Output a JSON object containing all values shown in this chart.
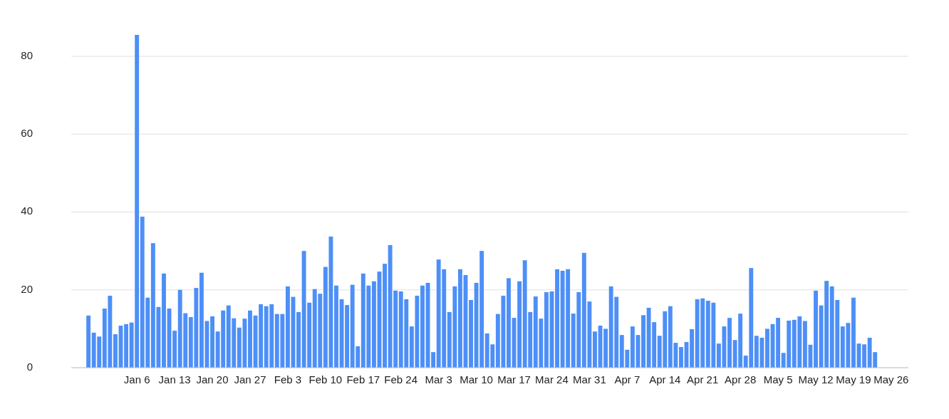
{
  "chart_data": {
    "type": "bar",
    "categories": [
      null,
      null,
      null,
      null,
      null,
      null,
      null,
      null,
      null,
      "Jan 6",
      null,
      null,
      null,
      null,
      null,
      null,
      "Jan 13",
      null,
      null,
      null,
      null,
      null,
      null,
      "Jan 20",
      null,
      null,
      null,
      null,
      null,
      null,
      "Jan 27",
      null,
      null,
      null,
      null,
      null,
      null,
      "Feb 3",
      null,
      null,
      null,
      null,
      null,
      null,
      "Feb 10",
      null,
      null,
      null,
      null,
      null,
      null,
      "Feb 17",
      null,
      null,
      null,
      null,
      null,
      null,
      "Feb 24",
      null,
      null,
      null,
      null,
      null,
      null,
      "Mar 3",
      null,
      null,
      null,
      null,
      null,
      null,
      "Mar 10",
      null,
      null,
      null,
      null,
      null,
      null,
      "Mar 17",
      null,
      null,
      null,
      null,
      null,
      null,
      "Mar 24",
      null,
      null,
      null,
      null,
      null,
      null,
      "Mar 31",
      null,
      null,
      null,
      null,
      null,
      null,
      "Apr 7",
      null,
      null,
      null,
      null,
      null,
      null,
      "Apr 14",
      null,
      null,
      null,
      null,
      null,
      null,
      "Apr 21",
      null,
      null,
      null,
      null,
      null,
      null,
      "Apr 28",
      null,
      null,
      null,
      null,
      null,
      null,
      "May 5",
      null,
      null,
      null,
      null,
      null,
      null,
      "May 12",
      null,
      null,
      null,
      null,
      null,
      null,
      "May 19",
      null,
      null,
      null,
      null,
      null,
      null,
      "May 26"
    ],
    "series": [
      {
        "color": "#4d8ff7",
        "values": [
          13.4,
          9,
          8,
          15.2,
          18.5,
          8.6,
          10.8,
          11.2,
          11.6,
          85.5,
          38.8,
          18,
          32,
          15.6,
          24.2,
          15.2,
          9.5,
          20,
          14,
          13,
          20.5,
          24.4,
          12,
          13.2,
          9.3,
          14.7,
          16,
          12.7,
          10.3,
          12.6,
          14.7,
          13.4,
          16.3,
          15.8,
          16.3,
          13.8,
          13.8,
          20.9,
          18.2,
          14.3,
          30,
          16.7,
          20.2,
          19,
          25.9,
          33.7,
          21.1,
          17.6,
          16.1,
          21.3,
          5.5,
          24.2,
          21.1,
          22.2,
          24.7,
          26.7,
          31.5,
          19.8,
          19.6,
          17.6,
          10.6,
          18.5,
          21.1,
          21.8,
          4,
          27.8,
          25.3,
          14.3,
          20.9,
          25.3,
          23.8,
          17.4,
          21.8,
          30,
          8.8,
          6,
          13.8,
          18.5,
          23,
          12.8,
          22.2,
          27.6,
          14.3,
          18.3,
          12.6,
          19.4,
          19.6,
          25.3,
          24.9,
          25.3,
          13.9,
          19.4,
          29.5,
          17,
          9.3,
          10.8,
          10,
          20.9,
          18.2,
          8.4,
          4.6,
          10.6,
          8.4,
          13.5,
          15.4,
          11.7,
          8.2,
          14.5,
          15.8,
          6.4,
          5.3,
          6.6,
          9.9,
          17.6,
          17.8,
          17.2,
          16.7,
          6.2,
          10.6,
          12.8,
          7.1,
          13.9,
          3.1,
          25.6,
          8.2,
          7.7,
          10,
          11.2,
          12.8,
          3.8,
          12.1,
          12.3,
          13.2,
          12,
          5.9,
          19.8,
          16,
          22.3,
          20.9,
          17.4,
          10.6,
          11.5,
          18,
          6.2,
          6,
          7.7,
          4,
          null,
          null,
          null
        ]
      }
    ],
    "ylim": [
      0,
      85.5
    ],
    "yticks": [
      0,
      20,
      40,
      60,
      80
    ],
    "grid": "y"
  }
}
